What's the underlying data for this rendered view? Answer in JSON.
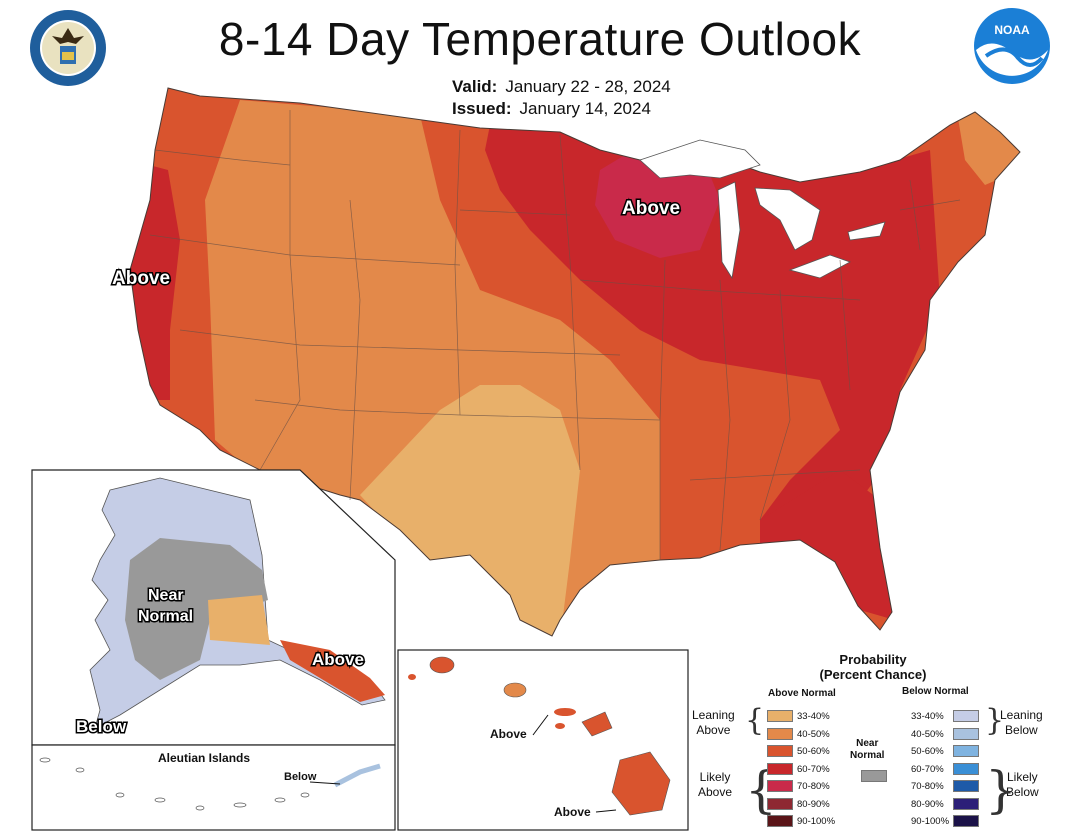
{
  "title": "8-14 Day Temperature Outlook",
  "valid_label": "Valid:",
  "valid_value": "January 22 - 28, 2024",
  "issued_label": "Issued:",
  "issued_value": "January 14, 2024",
  "logos": {
    "left": "department-of-commerce-seal",
    "right": "noaa-logo",
    "noaa_text": "NOAA"
  },
  "map_labels": {
    "west_coast": "Above",
    "great_lakes": "Above",
    "alaska_center": "Near Normal",
    "alaska_center_line1": "Near",
    "alaska_center_line2": "Normal",
    "alaska_southeast": "Above",
    "alaska_southwest": "Below",
    "aleutian_title": "Aleutian Islands",
    "aleutian_below": "Below",
    "hawaii_oahu": "Above",
    "hawaii_big_island": "Above"
  },
  "legend": {
    "title_line1": "Probability",
    "title_line2": "(Percent Chance)",
    "above_header": "Above Normal",
    "below_header": "Below Normal",
    "near_header_line1": "Near",
    "near_header_line2": "Normal",
    "leaning_above_1": "Leaning",
    "leaning_above_2": "Above",
    "likely_above_1": "Likely",
    "likely_above_2": "Above",
    "leaning_below_1": "Leaning",
    "leaning_below_2": "Below",
    "likely_below_1": "Likely",
    "likely_below_2": "Below",
    "above": [
      {
        "range": "33-40%",
        "color": "#e8b06a"
      },
      {
        "range": "40-50%",
        "color": "#e3894a"
      },
      {
        "range": "50-60%",
        "color": "#d9542e"
      },
      {
        "range": "60-70%",
        "color": "#c8272b"
      },
      {
        "range": "70-80%",
        "color": "#c92a4a"
      },
      {
        "range": "80-90%",
        "color": "#8e2832"
      },
      {
        "range": "90-100%",
        "color": "#5a1418"
      }
    ],
    "below": [
      {
        "range": "33-40%",
        "color": "#c5cde6"
      },
      {
        "range": "40-50%",
        "color": "#a9c2df"
      },
      {
        "range": "50-60%",
        "color": "#7fb3e0"
      },
      {
        "range": "60-70%",
        "color": "#3a8fd6"
      },
      {
        "range": "70-80%",
        "color": "#1e5aa8"
      },
      {
        "range": "80-90%",
        "color": "#2c1f78"
      },
      {
        "range": "90-100%",
        "color": "#1b1248"
      }
    ],
    "near_color": "#999999"
  }
}
